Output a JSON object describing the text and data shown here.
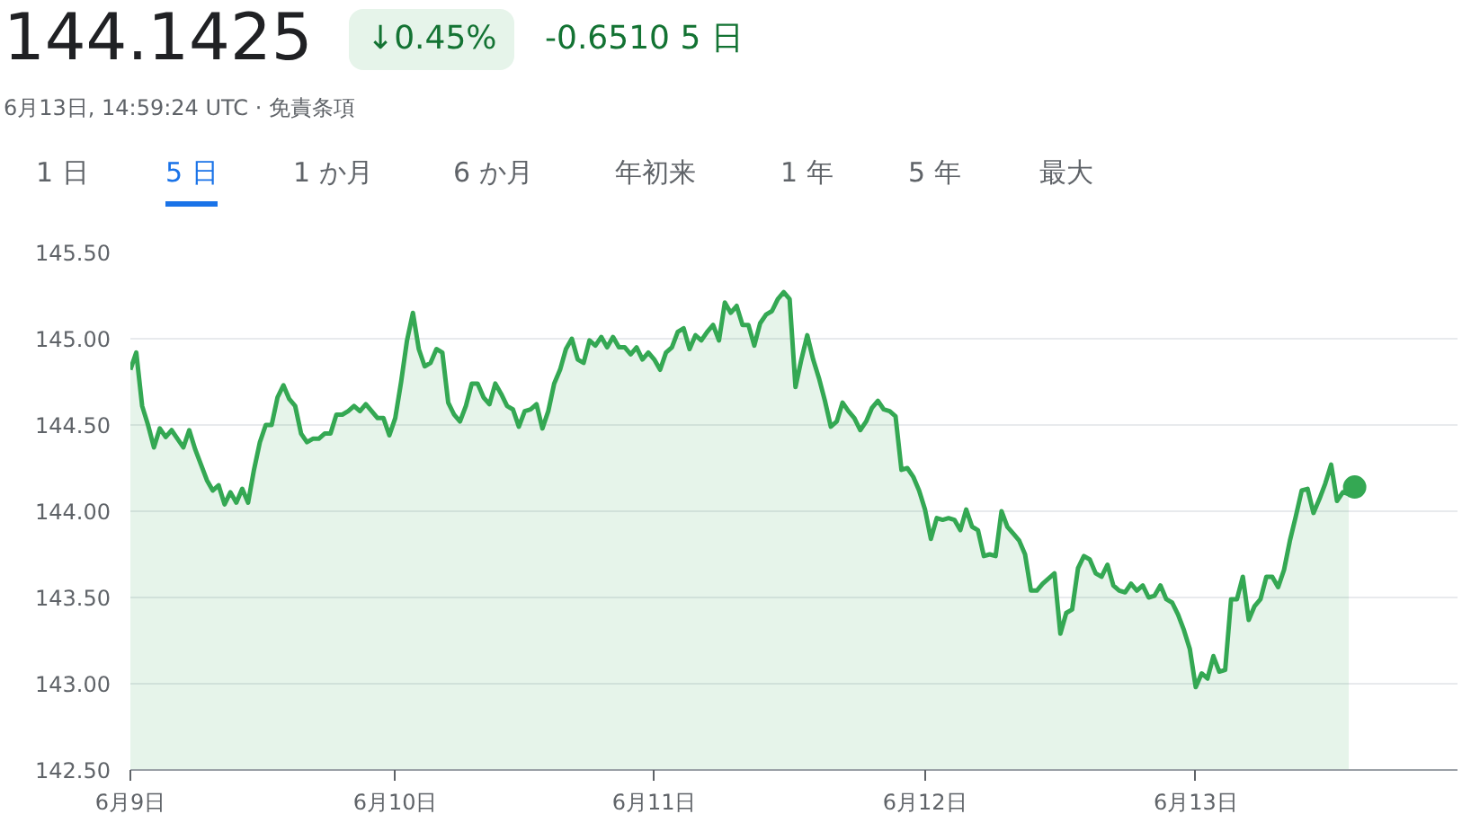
{
  "chart_data": {
    "type": "area",
    "title": "144.1425",
    "subtitle": "6月13日, 14:59:24 UTC · 免責条項",
    "annotations": [
      "↓0.45%",
      "-0.6510 5 日",
      "1 日",
      "5 日",
      "1 か月",
      "6 か月",
      "年初来",
      "1 年",
      "5 年",
      "最大"
    ],
    "categories": [
      "6月9日",
      null,
      null,
      null,
      null,
      null,
      null,
      null,
      null,
      null,
      null,
      null,
      null,
      null,
      null,
      null,
      null,
      null,
      null,
      null,
      null,
      null,
      null,
      null,
      null,
      null,
      null,
      null,
      null,
      null,
      null,
      null,
      null,
      null,
      null,
      null,
      null,
      null,
      null,
      null,
      null,
      null,
      null,
      null,
      null,
      "6月10日",
      null,
      null,
      null,
      null,
      null,
      null,
      null,
      null,
      null,
      null,
      null,
      null,
      null,
      null,
      null,
      null,
      null,
      null,
      null,
      null,
      null,
      null,
      null,
      null,
      null,
      null,
      null,
      null,
      null,
      null,
      null,
      null,
      null,
      null,
      null,
      null,
      null,
      null,
      null,
      null,
      null,
      null,
      null,
      "6月11日",
      null,
      null,
      null,
      null,
      null,
      null,
      null,
      null,
      null,
      null,
      null,
      null,
      null,
      null,
      null,
      null,
      null,
      null,
      null,
      null,
      null,
      null,
      null,
      null,
      null,
      null,
      null,
      null,
      null,
      null,
      null,
      null,
      null,
      null,
      null,
      null,
      null,
      null,
      null,
      null,
      null,
      null,
      null,
      null,
      null,
      "6月12日",
      null,
      null,
      null,
      null,
      null,
      null,
      null,
      null,
      null,
      null,
      null,
      null,
      null,
      null,
      null,
      null,
      null,
      null,
      null,
      null,
      null,
      null,
      null,
      null,
      null,
      null,
      null,
      null,
      null,
      null,
      null,
      null,
      null,
      null,
      null,
      null,
      null,
      null,
      null,
      null,
      null,
      null,
      null,
      null,
      null,
      "6月13日",
      null,
      null,
      null,
      null,
      null,
      null,
      null,
      null,
      null,
      null,
      null,
      null,
      null,
      null,
      null,
      null,
      null,
      null,
      null,
      null,
      null,
      null,
      null,
      null,
      null,
      null,
      null
    ],
    "ylim": [
      142.5,
      145.5
    ],
    "yticks": [
      {
        "value": 142.5,
        "label": "142.50"
      },
      {
        "value": 143,
        "label": "143.00"
      },
      {
        "value": 143.5,
        "label": "143.50"
      },
      {
        "value": 144,
        "label": "144.00"
      },
      {
        "value": 144.5,
        "label": "144.50"
      },
      {
        "value": 145,
        "label": "145.00"
      },
      {
        "value": 145.5,
        "label": "145.50"
      }
    ],
    "grid": "y",
    "series": [
      {
        "color": "#34a853",
        "values": [
          144.82,
          144.92,
          144.61,
          144.5,
          144.37,
          144.48,
          144.43,
          144.47,
          144.42,
          144.37,
          144.47,
          144.36,
          144.27,
          144.18,
          144.12,
          144.15,
          144.04,
          144.11,
          144.05,
          144.13,
          144.05,
          144.24,
          144.4,
          144.5,
          144.5,
          144.66,
          144.73,
          144.65,
          144.61,
          144.45,
          144.4,
          144.42,
          144.42,
          144.45,
          144.45,
          144.56,
          144.56,
          144.58,
          144.61,
          144.58,
          144.62,
          144.58,
          144.54,
          144.54,
          144.44,
          144.54,
          144.75,
          144.99,
          145.15,
          144.94,
          144.84,
          144.86,
          144.94,
          144.92,
          144.63,
          144.56,
          144.52,
          144.61,
          144.74,
          144.74,
          144.66,
          144.62,
          144.74,
          144.68,
          144.61,
          144.59,
          144.49,
          144.58,
          144.59,
          144.62,
          144.48,
          144.58,
          144.74,
          144.82,
          144.94,
          145.0,
          144.88,
          144.86,
          144.99,
          144.96,
          145.01,
          144.95,
          145.01,
          144.95,
          144.95,
          144.91,
          144.95,
          144.88,
          144.92,
          144.88,
          144.82,
          144.92,
          144.95,
          145.04,
          145.06,
          144.94,
          145.02,
          144.99,
          145.04,
          145.08,
          144.99,
          145.21,
          145.15,
          145.19,
          145.08,
          145.08,
          144.96,
          145.09,
          145.14,
          145.16,
          145.23,
          145.27,
          145.23,
          144.72,
          144.88,
          145.02,
          144.88,
          144.77,
          144.64,
          144.49,
          144.52,
          144.63,
          144.58,
          144.54,
          144.47,
          144.52,
          144.6,
          144.64,
          144.59,
          144.58,
          144.55,
          144.24,
          144.25,
          144.2,
          144.12,
          144.01,
          143.84,
          143.96,
          143.95,
          143.96,
          143.95,
          143.89,
          144.01,
          143.91,
          143.89,
          143.74,
          143.75,
          143.74,
          144.0,
          143.91,
          143.87,
          143.83,
          143.75,
          143.54,
          143.54,
          143.58,
          143.61,
          143.64,
          143.29,
          143.41,
          143.43,
          143.67,
          143.74,
          143.72,
          143.64,
          143.62,
          143.69,
          143.57,
          143.54,
          143.53,
          143.58,
          143.54,
          143.57,
          143.5,
          143.51,
          143.57,
          143.49,
          143.47,
          143.4,
          143.31,
          143.2,
          142.98,
          143.06,
          143.03,
          143.16,
          143.07,
          143.08,
          143.49,
          143.49,
          143.62,
          143.37,
          143.45,
          143.49,
          143.62,
          143.62,
          143.56,
          143.66,
          143.83,
          143.97,
          144.12,
          144.13,
          143.99,
          144.07,
          144.16,
          144.27,
          144.06,
          144.11,
          144.1,
          null
        ]
      },
      {
        "type": "scatter",
        "color": "#34a853",
        "values": [
          null,
          null,
          null,
          null,
          null,
          null,
          null,
          null,
          null,
          null,
          null,
          null,
          null,
          null,
          null,
          null,
          null,
          null,
          null,
          null,
          null,
          null,
          null,
          null,
          null,
          null,
          null,
          null,
          null,
          null,
          null,
          null,
          null,
          null,
          null,
          null,
          null,
          null,
          null,
          null,
          null,
          null,
          null,
          null,
          null,
          null,
          null,
          null,
          null,
          null,
          null,
          null,
          null,
          null,
          null,
          null,
          null,
          null,
          null,
          null,
          null,
          null,
          null,
          null,
          null,
          null,
          null,
          null,
          null,
          null,
          null,
          null,
          null,
          null,
          null,
          null,
          null,
          null,
          null,
          null,
          null,
          null,
          null,
          null,
          null,
          null,
          null,
          null,
          null,
          null,
          null,
          null,
          null,
          null,
          null,
          null,
          null,
          null,
          null,
          null,
          null,
          null,
          null,
          null,
          null,
          null,
          null,
          null,
          null,
          null,
          null,
          null,
          null,
          null,
          null,
          null,
          null,
          null,
          null,
          null,
          null,
          null,
          null,
          null,
          null,
          null,
          null,
          null,
          null,
          null,
          null,
          null,
          null,
          null,
          null,
          null,
          null,
          null,
          null,
          null,
          null,
          null,
          null,
          null,
          null,
          null,
          null,
          null,
          null,
          null,
          null,
          null,
          null,
          null,
          null,
          null,
          null,
          null,
          null,
          null,
          null,
          null,
          null,
          null,
          null,
          null,
          null,
          null,
          null,
          null,
          null,
          null,
          null,
          null,
          null,
          null,
          null,
          null,
          null,
          null,
          null,
          null,
          null,
          null,
          null,
          null,
          null,
          null,
          null,
          null,
          null,
          null,
          null,
          null,
          null,
          null,
          null,
          null,
          null,
          null,
          null,
          null,
          null,
          null,
          null,
          null,
          null,
          null,
          144.14
        ]
      }
    ]
  }
}
